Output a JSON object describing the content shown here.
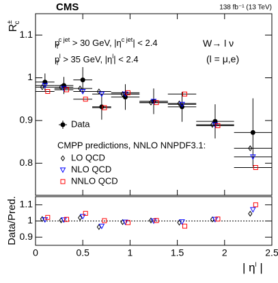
{
  "chart_data": [
    {
      "type": "scatter",
      "title": "CMS",
      "subtitle": "138 fb⁻¹ (13 TeV)",
      "ylabel": [
        "R",
        "±",
        "c"
      ],
      "annotations": [
        [
          "p",
          "T",
          "c jet",
          " > 30 GeV, |η",
          "c jet",
          "| < 2.4"
        ],
        [
          "p",
          "T",
          "l",
          " > 35 GeV, |η",
          "l",
          "| < 2.4"
        ],
        [
          "W→ l ν"
        ],
        [
          "(l = μ,e)"
        ]
      ],
      "legend_title": "CMPP predictions, NNLO NNPDF3.1:",
      "x": [
        0.1,
        0.3,
        0.5,
        0.7,
        0.95,
        1.25,
        1.55,
        1.9,
        2.3
      ],
      "xerr": [
        0.1,
        0.1,
        0.1,
        0.1,
        0.15,
        0.15,
        0.15,
        0.2,
        0.2
      ],
      "series": [
        {
          "name": "Data",
          "color": "#000000",
          "marker": "circle",
          "values": [
            0.99,
            0.982,
            0.995,
            0.932,
            0.955,
            0.945,
            0.932,
            0.898,
            0.872
          ],
          "errors": [
            0.02,
            0.02,
            0.03,
            0.03,
            0.03,
            0.03,
            0.035,
            0.04,
            0.08
          ]
        },
        {
          "name": "LO QCD",
          "color": "#000000",
          "marker": "diamond",
          "values": [
            0.978,
            0.978,
            0.975,
            0.968,
            0.962,
            0.942,
            0.94,
            0.89,
            0.835
          ]
        },
        {
          "name": "NLO QCD",
          "color": "#0000ff",
          "marker": "triangle",
          "values": [
            0.982,
            0.975,
            0.968,
            0.962,
            0.962,
            0.945,
            0.938,
            0.89,
            0.815
          ]
        },
        {
          "name": "NNLO QCD",
          "color": "#ff0000",
          "marker": "square",
          "values": [
            0.968,
            0.972,
            0.95,
            0.93,
            0.965,
            0.942,
            0.962,
            0.888,
            0.79
          ]
        }
      ],
      "xlim": [
        0,
        2.5
      ],
      "ylim": [
        0.725,
        1.15
      ],
      "yticks": [
        0.8,
        0.9,
        1,
        1.1
      ]
    },
    {
      "type": "scatter",
      "ylabel": "Data/Pred.",
      "xlabel": [
        "| η",
        "l",
        " |"
      ],
      "x": [
        0.1,
        0.3,
        0.5,
        0.7,
        0.95,
        1.25,
        1.55,
        1.9,
        2.3
      ],
      "series": [
        {
          "name": "LO QCD",
          "color": "#000000",
          "marker": "diamond",
          "values": [
            1.012,
            1.004,
            1.02,
            0.963,
            0.993,
            1.003,
            0.99,
            1.01,
            1.045
          ]
        },
        {
          "name": "NLO QCD",
          "color": "#0000ff",
          "marker": "triangle",
          "values": [
            1.008,
            1.007,
            1.028,
            0.968,
            0.993,
            1.0,
            0.995,
            1.01,
            1.07
          ]
        },
        {
          "name": "NNLO QCD",
          "color": "#ff0000",
          "marker": "square",
          "values": [
            1.022,
            1.01,
            1.047,
            1.002,
            0.99,
            1.003,
            0.968,
            1.012,
            1.1
          ]
        }
      ],
      "reference": 1,
      "xlim": [
        0,
        2.5
      ],
      "xticks": [
        0,
        0.5,
        1,
        1.5,
        2,
        2.5
      ],
      "ylim": [
        0.85,
        1.15
      ],
      "yticks": [
        0.9,
        1,
        1.1
      ]
    }
  ]
}
